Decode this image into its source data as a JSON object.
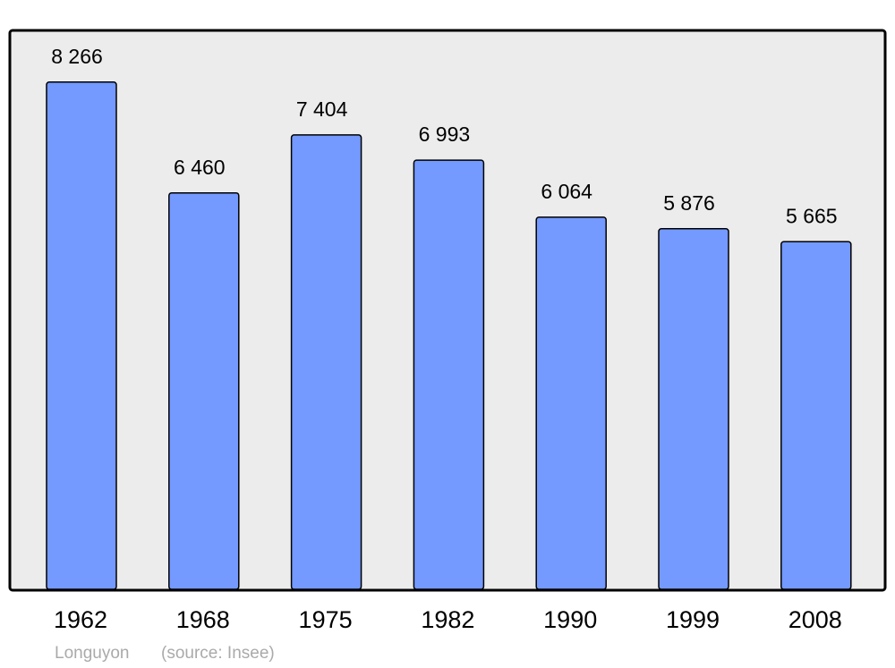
{
  "chart_data": {
    "type": "bar",
    "categories": [
      "1962",
      "1968",
      "1975",
      "1982",
      "1990",
      "1999",
      "2008"
    ],
    "values": [
      8266,
      6460,
      7404,
      6993,
      6064,
      5876,
      5665
    ],
    "value_labels": [
      "8 266",
      "6 460",
      "7 404",
      "6 993",
      "6 064",
      "5 876",
      "5 665"
    ],
    "color": "#7499ff",
    "caption": "Longuyon",
    "source": "(source: Insee)"
  }
}
